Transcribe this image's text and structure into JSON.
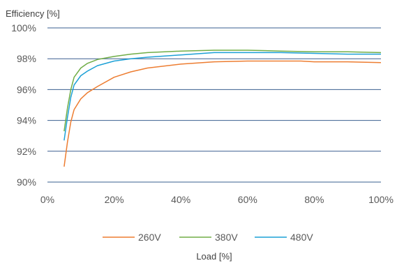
{
  "chart_data": {
    "type": "line",
    "title": "",
    "ylabel": "Efficiency [%]",
    "xlabel": "Load [%]",
    "xlim": [
      0,
      100
    ],
    "ylim": [
      90,
      100
    ],
    "x_ticks": [
      0,
      20,
      40,
      60,
      80,
      100
    ],
    "x_tick_labels": [
      "0%",
      "20%",
      "40%",
      "60%",
      "80%",
      "100%"
    ],
    "y_ticks": [
      90,
      92,
      94,
      96,
      98,
      100
    ],
    "y_tick_labels": [
      "90%",
      "92%",
      "94%",
      "96%",
      "98%",
      "100%"
    ],
    "grid": "horizontal",
    "legend_position": "bottom",
    "series": [
      {
        "name": "260V",
        "color": "#ED7D31",
        "points": [
          [
            5,
            91.0
          ],
          [
            6,
            92.6
          ],
          [
            7,
            93.9
          ],
          [
            8,
            94.7
          ],
          [
            10,
            95.4
          ],
          [
            12,
            95.8
          ],
          [
            15,
            96.2
          ],
          [
            20,
            96.8
          ],
          [
            25,
            97.15
          ],
          [
            30,
            97.4
          ],
          [
            40,
            97.65
          ],
          [
            50,
            97.8
          ],
          [
            60,
            97.85
          ],
          [
            70,
            97.85
          ],
          [
            76,
            97.85
          ],
          [
            80,
            97.8
          ],
          [
            90,
            97.8
          ],
          [
            100,
            97.75
          ]
        ]
      },
      {
        "name": "380V",
        "color": "#70AD47",
        "points": [
          [
            5,
            93.3
          ],
          [
            6,
            94.8
          ],
          [
            7,
            96.0
          ],
          [
            8,
            96.8
          ],
          [
            10,
            97.4
          ],
          [
            12,
            97.7
          ],
          [
            15,
            97.95
          ],
          [
            20,
            98.15
          ],
          [
            25,
            98.3
          ],
          [
            30,
            98.4
          ],
          [
            40,
            98.5
          ],
          [
            50,
            98.55
          ],
          [
            60,
            98.55
          ],
          [
            70,
            98.5
          ],
          [
            80,
            98.45
          ],
          [
            90,
            98.45
          ],
          [
            100,
            98.4
          ]
        ]
      },
      {
        "name": "480V",
        "color": "#1CA0D6",
        "points": [
          [
            5,
            92.7
          ],
          [
            6,
            94.2
          ],
          [
            7,
            95.5
          ],
          [
            8,
            96.3
          ],
          [
            10,
            96.9
          ],
          [
            12,
            97.2
          ],
          [
            15,
            97.55
          ],
          [
            20,
            97.85
          ],
          [
            25,
            98.0
          ],
          [
            30,
            98.1
          ],
          [
            40,
            98.25
          ],
          [
            50,
            98.4
          ],
          [
            60,
            98.4
          ],
          [
            70,
            98.4
          ],
          [
            80,
            98.35
          ],
          [
            90,
            98.3
          ],
          [
            100,
            98.3
          ]
        ]
      }
    ]
  }
}
